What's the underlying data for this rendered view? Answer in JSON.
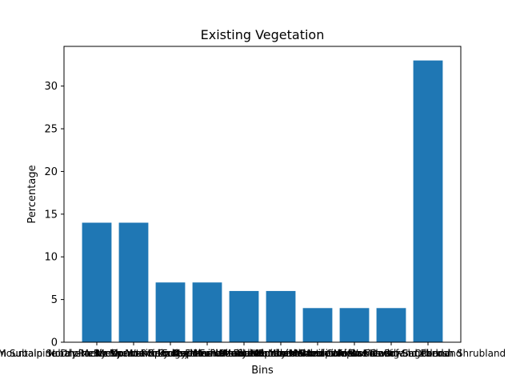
{
  "chart_data": {
    "type": "bar",
    "title": "Existing Vegetation",
    "xlabel": "Bins",
    "ylabel": "Percentage",
    "categories": [
      "Rocky Mountain Subalpine Dry-Mesic Spruce-Fir Forest and Woodland",
      "Rocky Mountain Subalpine Mesic-Wet Spruce-Fir Forest and Woodland",
      "Rocky Mountain Lodgepole Pine Forest",
      "Northern Rocky Mountain Dry-Mesic Montane Mixed Conifer Forest",
      "Northern Rocky Mountain Mesic Montane Mixed Conifer Forest",
      "Rocky Mountain Subalpine-Montane Mesic Meadow",
      "Northern Rocky Mountain Subalpine Woodland and Parkland",
      "Rocky Mountain Alpine Dwarf-Shrubland",
      "Inter-Mountain Basins Big Sagebrush Shrubland",
      "Other"
    ],
    "values": [
      14,
      14,
      7,
      7,
      6,
      6,
      4,
      4,
      4,
      33
    ],
    "ylim": [
      0,
      34.65
    ],
    "yticks": [
      0,
      5,
      10,
      15,
      20,
      25,
      30
    ],
    "bar_color": "#1f77b4",
    "grid": false,
    "legend": "none"
  }
}
